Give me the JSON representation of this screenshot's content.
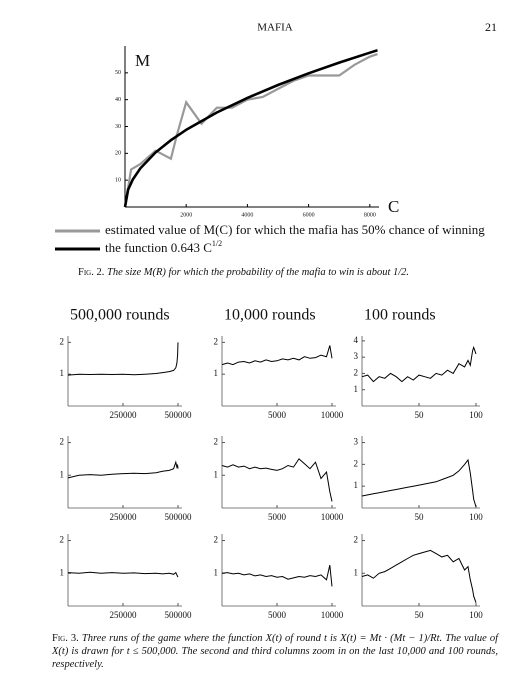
{
  "header": {
    "title": "MAFIA",
    "page": "21"
  },
  "captions": {
    "fig2": {
      "label": "Fig. 2.",
      "text": "The size M(R) for which the probability of the mafia to win is about 1/2."
    },
    "fig3": {
      "label": "Fig. 3.",
      "text": "Three runs of the game where the function X(t) of round t is X(t) = Mt · (Mt − 1)/Rt. The value of X(t) is drawn for t ≤ 500,000. The second and third columns zoom in on the last 10,000 and 100 rounds, respectively."
    }
  },
  "column_titles": [
    "500,000 rounds",
    "10,000 rounds",
    "100 rounds"
  ],
  "chart_data": [
    {
      "type": "line",
      "y_label": "M",
      "x_label": "C",
      "xlim": [
        0,
        8300
      ],
      "ylim": [
        0,
        60
      ],
      "xticks": [
        2000,
        4000,
        6000,
        8000
      ],
      "yticks": [
        10,
        20,
        30,
        40,
        50
      ],
      "series": [
        {
          "name": "estimated value of M(C) for which the mafia has 50% chance of winning",
          "color": "#999999",
          "x": [
            0,
            200,
            500,
            1000,
            1500,
            1700,
            2000,
            2500,
            3000,
            3500,
            4000,
            4500,
            5000,
            5500,
            6000,
            6500,
            7000,
            7500,
            8000,
            8250
          ],
          "values": [
            0,
            14,
            16,
            21,
            18,
            27,
            39,
            31,
            37,
            37,
            40,
            41,
            44,
            47,
            49,
            49,
            49,
            53,
            56,
            57
          ]
        },
        {
          "name": "the function 0.643 C",
          "name_superscript": "1/2",
          "color": "#000000",
          "x": [
            0,
            100,
            250,
            500,
            1000,
            1500,
            2000,
            3000,
            4000,
            5000,
            6000,
            7000,
            8000,
            8250
          ],
          "values": [
            0,
            6.43,
            10.17,
            14.38,
            20.33,
            24.9,
            28.76,
            35.22,
            40.67,
            45.47,
            49.81,
            53.8,
            57.51,
            58.4
          ]
        }
      ]
    },
    {
      "type": "line",
      "xlim": [
        0,
        500000
      ],
      "ylim": [
        0,
        2.2
      ],
      "xticks": [
        250000,
        500000
      ],
      "yticks": [
        1,
        2
      ],
      "x": [
        0,
        50000,
        100000,
        150000,
        200000,
        250000,
        300000,
        350000,
        400000,
        430000,
        460000,
        480000,
        490000,
        495000,
        498000,
        500000
      ],
      "values": [
        0.97,
        1.0,
        0.99,
        1.0,
        0.99,
        1.0,
        0.98,
        1.0,
        1.02,
        1.05,
        1.08,
        1.12,
        1.2,
        1.35,
        1.6,
        2.0
      ]
    },
    {
      "type": "line",
      "xlim": [
        0,
        10000
      ],
      "ylim": [
        0,
        2.2
      ],
      "xticks": [
        5000,
        10000
      ],
      "yticks": [
        1,
        2
      ],
      "x": [
        0,
        500,
        1000,
        1500,
        2000,
        2500,
        3000,
        3500,
        4000,
        4500,
        5000,
        5500,
        6000,
        6500,
        7000,
        7500,
        8000,
        8500,
        9000,
        9500,
        9800,
        10000
      ],
      "values": [
        1.3,
        1.35,
        1.3,
        1.38,
        1.4,
        1.35,
        1.42,
        1.38,
        1.45,
        1.4,
        1.42,
        1.48,
        1.45,
        1.5,
        1.45,
        1.55,
        1.5,
        1.52,
        1.6,
        1.55,
        1.9,
        1.5
      ]
    },
    {
      "type": "line",
      "xlim": [
        0,
        100
      ],
      "ylim": [
        0,
        4.3
      ],
      "xticks": [
        50,
        100
      ],
      "yticks": [
        1,
        2,
        3,
        4
      ],
      "x": [
        0,
        5,
        10,
        15,
        20,
        25,
        30,
        35,
        40,
        45,
        50,
        55,
        60,
        65,
        70,
        75,
        80,
        85,
        90,
        93,
        95,
        97,
        98,
        100
      ],
      "values": [
        1.8,
        1.9,
        1.5,
        1.8,
        1.7,
        2.0,
        1.8,
        1.5,
        1.8,
        1.6,
        1.9,
        1.8,
        1.7,
        2.0,
        1.9,
        2.2,
        2.0,
        2.6,
        2.4,
        2.8,
        2.5,
        3.4,
        3.6,
        3.2
      ]
    },
    {
      "type": "line",
      "xlim": [
        0,
        500000
      ],
      "ylim": [
        0,
        2.2
      ],
      "xticks": [
        250000,
        500000
      ],
      "yticks": [
        1,
        2
      ],
      "x": [
        0,
        50000,
        100000,
        150000,
        200000,
        250000,
        300000,
        350000,
        400000,
        430000,
        460000,
        480000,
        490000,
        495000,
        498000,
        500000
      ],
      "values": [
        0.92,
        1.0,
        1.02,
        1.0,
        1.03,
        1.05,
        1.06,
        1.05,
        1.08,
        1.12,
        1.15,
        1.2,
        1.4,
        1.25,
        1.3,
        1.2
      ]
    },
    {
      "type": "line",
      "xlim": [
        0,
        10000
      ],
      "ylim": [
        0,
        2.2
      ],
      "xticks": [
        5000,
        10000
      ],
      "yticks": [
        1,
        2
      ],
      "x": [
        0,
        500,
        1000,
        1500,
        2000,
        2500,
        3000,
        3500,
        4000,
        4500,
        5000,
        5500,
        6000,
        6500,
        7000,
        7500,
        8000,
        8500,
        9000,
        9500,
        9800,
        10000
      ],
      "values": [
        1.3,
        1.25,
        1.32,
        1.25,
        1.28,
        1.2,
        1.25,
        1.2,
        1.22,
        1.18,
        1.15,
        1.2,
        1.3,
        1.25,
        1.5,
        1.35,
        1.2,
        1.4,
        0.9,
        1.1,
        0.5,
        0.2
      ]
    },
    {
      "type": "line",
      "xlim": [
        0,
        100
      ],
      "ylim": [
        0,
        3.3
      ],
      "xticks": [
        50,
        100
      ],
      "yticks": [
        1,
        2,
        3
      ],
      "x": [
        0,
        5,
        10,
        15,
        20,
        25,
        30,
        35,
        40,
        45,
        50,
        55,
        60,
        65,
        70,
        75,
        80,
        85,
        90,
        93,
        95,
        97,
        98,
        100
      ],
      "values": [
        0.55,
        0.6,
        0.65,
        0.7,
        0.75,
        0.8,
        0.85,
        0.9,
        0.95,
        1.0,
        1.05,
        1.1,
        1.15,
        1.2,
        1.3,
        1.4,
        1.5,
        1.7,
        2.0,
        2.2,
        1.6,
        0.8,
        0.4,
        0.05
      ]
    },
    {
      "type": "line",
      "xlim": [
        0,
        500000
      ],
      "ylim": [
        0,
        2.2
      ],
      "xticks": [
        250000,
        500000
      ],
      "yticks": [
        1,
        2
      ],
      "x": [
        0,
        50000,
        100000,
        150000,
        200000,
        250000,
        300000,
        350000,
        400000,
        430000,
        460000,
        480000,
        490000,
        495000,
        498000,
        500000
      ],
      "values": [
        1.02,
        1.0,
        1.03,
        1.0,
        1.02,
        1.0,
        1.01,
        0.99,
        1.0,
        0.98,
        1.0,
        0.97,
        1.02,
        0.95,
        0.9,
        0.92
      ]
    },
    {
      "type": "line",
      "xlim": [
        0,
        10000
      ],
      "ylim": [
        0,
        2.2
      ],
      "xticks": [
        5000,
        10000
      ],
      "yticks": [
        1,
        2
      ],
      "x": [
        0,
        500,
        1000,
        1500,
        2000,
        2500,
        3000,
        3500,
        4000,
        4500,
        5000,
        5500,
        6000,
        6500,
        7000,
        7500,
        8000,
        8500,
        9000,
        9500,
        9800,
        10000
      ],
      "values": [
        1.0,
        1.02,
        0.98,
        1.0,
        0.95,
        0.98,
        0.92,
        0.95,
        0.9,
        0.93,
        0.88,
        0.9,
        0.82,
        0.86,
        0.9,
        0.88,
        0.93,
        0.9,
        0.95,
        0.8,
        1.25,
        0.6
      ]
    },
    {
      "type": "line",
      "xlim": [
        0,
        100
      ],
      "ylim": [
        0,
        2.2
      ],
      "xticks": [
        50,
        100
      ],
      "yticks": [
        1,
        2
      ],
      "x": [
        0,
        5,
        10,
        15,
        20,
        25,
        30,
        35,
        40,
        45,
        50,
        55,
        60,
        65,
        70,
        75,
        80,
        85,
        90,
        93,
        95,
        97,
        98,
        100
      ],
      "values": [
        0.9,
        0.95,
        0.85,
        1.0,
        1.05,
        1.15,
        1.25,
        1.35,
        1.45,
        1.55,
        1.6,
        1.65,
        1.7,
        1.6,
        1.5,
        1.55,
        1.35,
        1.45,
        1.1,
        1.2,
        0.8,
        0.5,
        0.3,
        0.1
      ]
    }
  ]
}
